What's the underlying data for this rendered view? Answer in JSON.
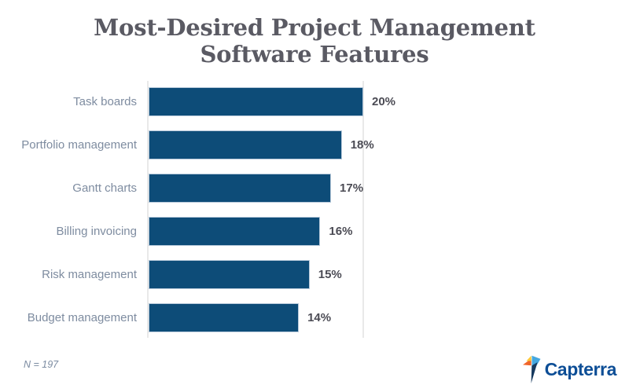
{
  "title": {
    "lines": [
      "Most-Desired Project Management",
      "Software Features"
    ]
  },
  "chart_data": {
    "type": "bar",
    "orientation": "horizontal",
    "title": "Most-Desired Project Management Software Features",
    "categories": [
      "Task boards",
      "Portfolio management",
      "Gantt charts",
      "Billing invoicing",
      "Risk management",
      "Budget management"
    ],
    "values": [
      20,
      18,
      17,
      16,
      15,
      14
    ],
    "value_labels": [
      "20%",
      "18%",
      "17%",
      "16%",
      "15%",
      "14%"
    ],
    "xlabel": "",
    "ylabel": "",
    "xlim": [
      0,
      20
    ],
    "grid": "single vertical gridline at 20%, left baseline axis, no tick labels",
    "legend": "none",
    "colors": {
      "bar": "#0d4c78",
      "bar_border": "#b7c9da",
      "axis": "#e9e9e9",
      "category_labels": "#7e8ca0",
      "value_labels": "#4b4b54",
      "title": "#5a5a63"
    }
  },
  "footnote": {
    "text": "N = 197",
    "color": "#7b8ba1"
  },
  "logo": {
    "text": "Capterra",
    "text_color": "#0d4e96",
    "icon_colors": {
      "orange": "#f0652a",
      "yellow": "#ffc838",
      "light_blue": "#45a8e0",
      "navy": "#173a5f"
    }
  }
}
